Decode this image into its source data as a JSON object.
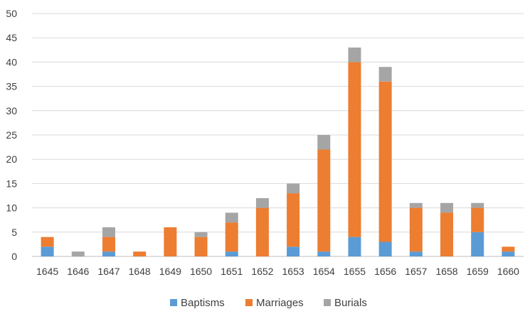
{
  "chart_data": {
    "type": "bar",
    "stacked": true,
    "title": "",
    "xlabel": "",
    "ylabel": "",
    "ylim": [
      0,
      50
    ],
    "y_ticks": [
      0,
      5,
      10,
      15,
      20,
      25,
      30,
      35,
      40,
      45,
      50
    ],
    "grid": true,
    "legend_position": "bottom",
    "categories": [
      "1645",
      "1646",
      "1647",
      "1648",
      "1649",
      "1650",
      "1651",
      "1652",
      "1653",
      "1654",
      "1655",
      "1656",
      "1657",
      "1658",
      "1659",
      "1660"
    ],
    "series": [
      {
        "name": "Baptisms",
        "color": "#5b9bd5",
        "values": [
          2,
          0,
          1,
          0,
          0,
          0,
          1,
          0,
          2,
          1,
          4,
          3,
          1,
          0,
          5,
          1
        ]
      },
      {
        "name": "Marriages",
        "color": "#ed7d31",
        "values": [
          2,
          0,
          3,
          1,
          6,
          4,
          6,
          10,
          11,
          21,
          36,
          33,
          9,
          9,
          5,
          1
        ]
      },
      {
        "name": "Burials",
        "color": "#a5a5a5",
        "values": [
          0,
          1,
          2,
          0,
          0,
          1,
          2,
          2,
          2,
          3,
          3,
          3,
          1,
          2,
          1,
          0
        ]
      }
    ]
  }
}
